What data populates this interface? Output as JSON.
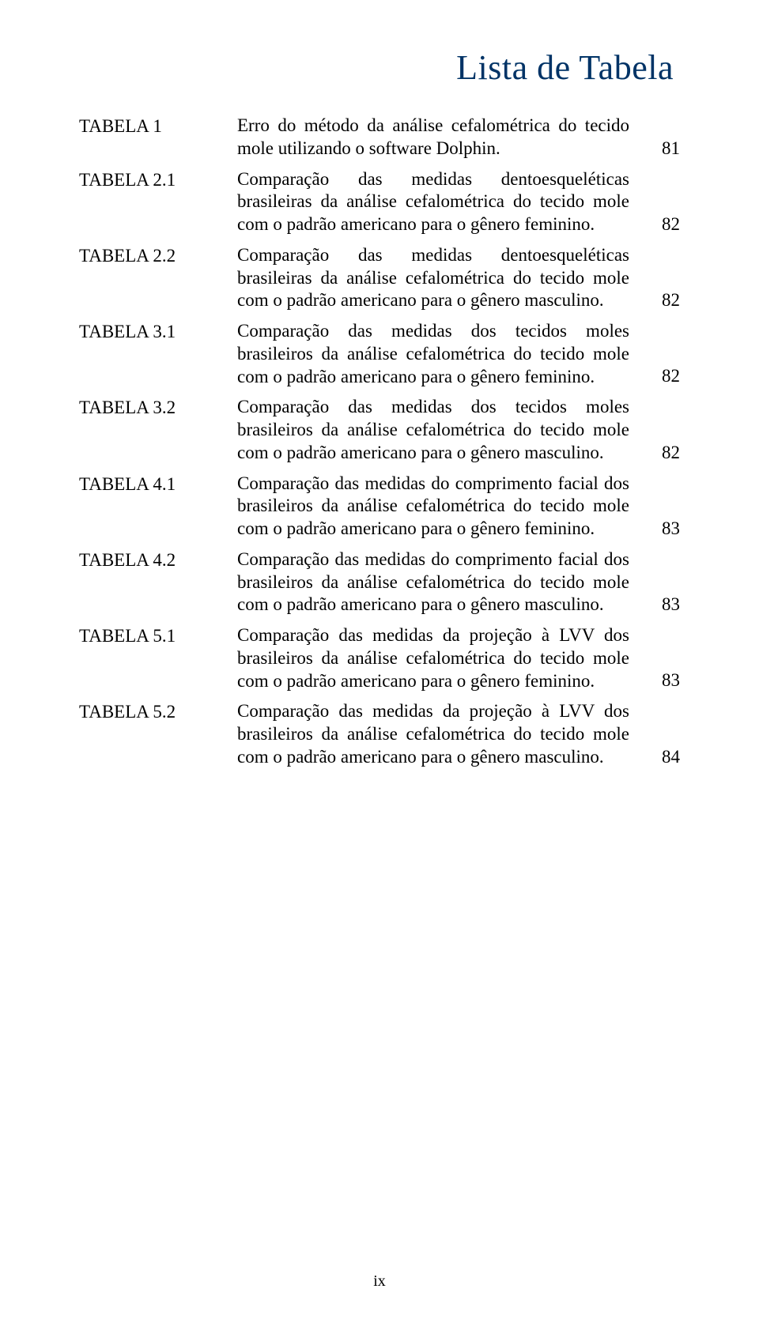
{
  "title": "Lista de Tabela",
  "title_color": "#003366",
  "background_color": "#ffffff",
  "text_color": "#000000",
  "font_family": "Times New Roman",
  "body_fontsize_pt": 17,
  "title_fontsize_pt": 33,
  "rows": [
    {
      "label": "TABELA 1",
      "description": "Erro do método da análise cefalométrica do tecido mole utilizando o software Dolphin.",
      "page": "81"
    },
    {
      "label": "TABELA 2.1",
      "description": "Comparação das medidas dentoesqueléticas brasileiras da análise cefalométrica do tecido mole com o padrão americano para o gênero feminino.",
      "page": "82"
    },
    {
      "label": "TABELA 2.2",
      "description": "Comparação das medidas dentoesqueléticas brasileiras da análise cefalométrica do tecido mole com o padrão americano para o gênero masculino.",
      "page": "82"
    },
    {
      "label": "TABELA 3.1",
      "description": "Comparação das medidas dos tecidos moles brasileiros da análise cefalométrica do tecido mole com o padrão americano para o gênero feminino.",
      "page": "82"
    },
    {
      "label": "TABELA 3.2",
      "description": "Comparação das medidas dos tecidos moles brasileiros da análise cefalométrica do tecido mole com o padrão americano para o gênero masculino.",
      "page": "82"
    },
    {
      "label": "TABELA 4.1",
      "description": "Comparação das medidas do comprimento facial dos brasileiros da análise cefalométrica do tecido mole com o padrão americano para o gênero feminino.",
      "page": "83"
    },
    {
      "label": "TABELA 4.2",
      "description": "Comparação das medidas do comprimento facial dos brasileiros da análise cefalométrica do tecido mole com o padrão americano para o gênero masculino.",
      "page": "83"
    },
    {
      "label": "TABELA 5.1",
      "description": "Comparação das medidas da projeção à LVV dos brasileiros da análise cefalométrica do tecido mole com o padrão americano para o gênero feminino.",
      "page": "83"
    },
    {
      "label": "TABELA 5.2",
      "description": "Comparação das medidas da projeção à LVV dos brasileiros da análise cefalométrica do tecido mole com o padrão americano para o gênero masculino.",
      "page": "84"
    }
  ],
  "footer": "ix"
}
